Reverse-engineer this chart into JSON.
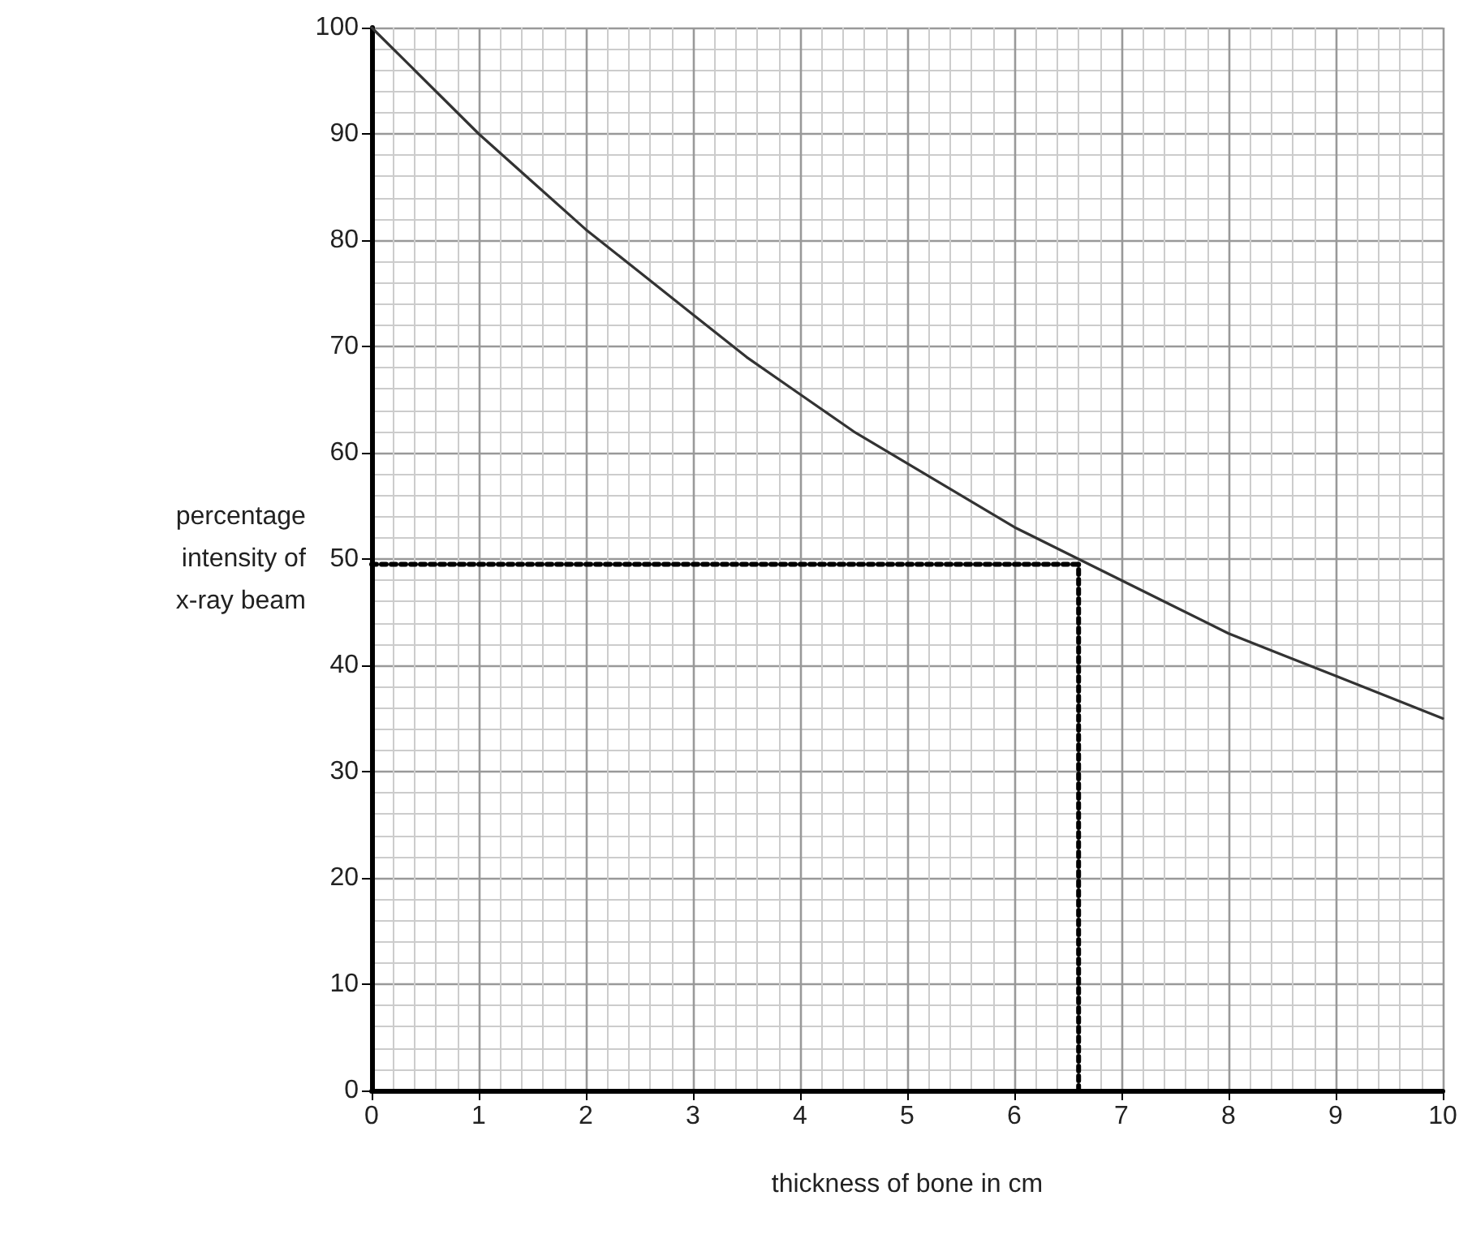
{
  "chart_data": {
    "type": "line",
    "xlabel": "thickness of bone in cm",
    "ylabel": "percentage\nintensity of\nx-ray beam",
    "x": [
      0,
      0.5,
      1,
      1.5,
      2,
      2.5,
      3,
      3.5,
      4,
      4.5,
      5,
      5.5,
      6,
      6.5,
      7,
      7.5,
      8,
      8.5,
      9,
      9.5,
      10
    ],
    "series": [
      {
        "color": "#333333",
        "values": [
          100,
          95,
          90,
          85.5,
          81,
          77,
          73,
          69,
          65.5,
          62,
          59,
          56,
          53,
          50.5,
          48,
          45.5,
          43,
          41,
          39,
          37,
          35
        ]
      }
    ],
    "xlim": [
      0,
      10
    ],
    "ylim": [
      0,
      100
    ],
    "xticks": [
      0,
      1,
      2,
      3,
      4,
      5,
      6,
      7,
      8,
      9,
      10
    ],
    "yticks": [
      0,
      10,
      20,
      30,
      40,
      50,
      60,
      70,
      80,
      90,
      100
    ],
    "grid": true,
    "marker": "none",
    "line_style": "solid",
    "ref_lines": [
      {
        "axis": "y",
        "value": 49.5,
        "color": "#000000",
        "line_style": "dotted"
      },
      {
        "axis": "x",
        "value": 6.6,
        "color": "#000000",
        "line_style": "dotted"
      }
    ]
  }
}
